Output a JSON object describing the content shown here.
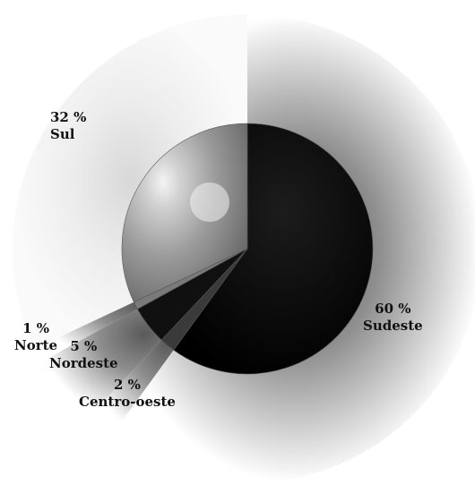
{
  "chart_data": {
    "type": "pie",
    "start_angle_deg": 0,
    "direction": "clockwise",
    "slices": [
      {
        "label": "Sudeste",
        "value": 60,
        "value_label": "60 %",
        "color": "#000000"
      },
      {
        "label": "Centro-oeste",
        "value": 2,
        "value_label": "2 %",
        "color": "#3a3a3a"
      },
      {
        "label": "Nordeste",
        "value": 5,
        "value_label": "5 %",
        "color": "#101010"
      },
      {
        "label": "Norte",
        "value": 1,
        "value_label": "1 %",
        "color": "#7a7a7a"
      },
      {
        "label": "Sul",
        "value": 32,
        "value_label": "32 %",
        "color": "#9a9a9a"
      }
    ],
    "legend": "none",
    "grid": false
  }
}
